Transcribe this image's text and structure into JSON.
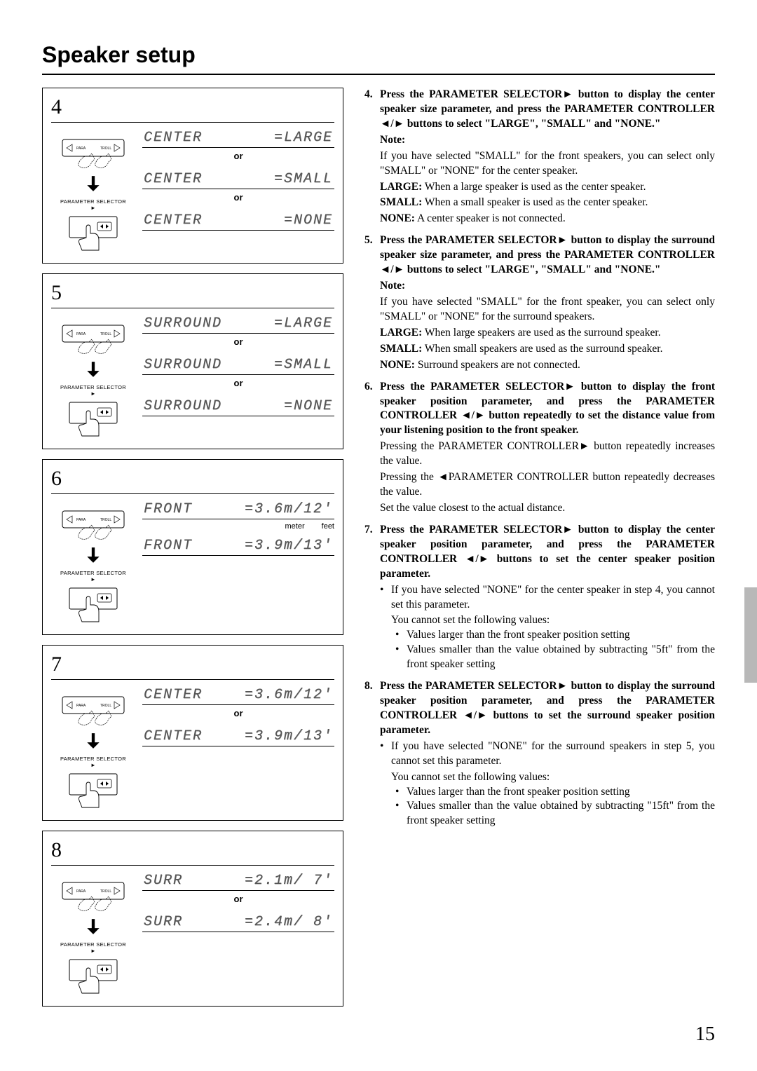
{
  "title": "Speaker setup",
  "page_number": "15",
  "remote_label": "PARAMETER SELECTOR",
  "arrow_icons": {
    "left": "◄",
    "right": "►"
  },
  "left_steps": [
    {
      "num": "4",
      "displays": [
        {
          "left": "CENTER",
          "right": "=LARGE",
          "or_after": true
        },
        {
          "left": "CENTER",
          "right": "=SMALL",
          "or_after": true
        },
        {
          "left": "CENTER",
          "right": "=NONE",
          "or_after": false
        }
      ]
    },
    {
      "num": "5",
      "displays": [
        {
          "left": "SURROUND",
          "right": "=LARGE",
          "or_after": true
        },
        {
          "left": "SURROUND",
          "right": "=SMALL",
          "or_after": true
        },
        {
          "left": "SURROUND",
          "right": "=NONE",
          "or_after": false
        }
      ]
    },
    {
      "num": "6",
      "unit_labels": {
        "meter": "meter",
        "feet": "feet"
      },
      "displays": [
        {
          "left": "FRONT",
          "right": "=3.6m/12'",
          "or_after": false,
          "units_after": true
        },
        {
          "left": "FRONT",
          "right": "=3.9m/13'",
          "or_after": false
        }
      ]
    },
    {
      "num": "7",
      "displays": [
        {
          "left": "CENTER",
          "right": "=3.6m/12'",
          "or_after": true
        },
        {
          "left": "CENTER",
          "right": "=3.9m/13'",
          "or_after": false
        }
      ]
    },
    {
      "num": "8",
      "displays": [
        {
          "left": "SURR",
          "right": "=2.1m/ 7'",
          "or_after": true
        },
        {
          "left": "SURR",
          "right": "=2.4m/ 8'",
          "or_after": false
        }
      ]
    }
  ],
  "right_steps": {
    "s4": {
      "head_a": "Press the PARAMETER SELECTOR",
      "head_b": " button to display the center speaker size parameter, and press the PARAME­TER CONTROLLER ",
      "head_c": " buttons to select \"LARGE\", \"SMALL\" and \"NONE.\"",
      "note": "Note:",
      "body1": "If you have selected \"SMALL\" for the front speakers, you can select only \"SMALL\" or \"NONE\" for the center speaker.",
      "large": "LARGE:",
      "large_t": " When a large speaker is used as the center speaker.",
      "small": "SMALL:",
      "small_t": " When a small speaker is used as the center speaker.",
      "none": "NONE:",
      "none_t": " A center speaker is not connected."
    },
    "s5": {
      "head_a": "Press the PARAMETER SELECTOR",
      "head_b": " button to display the surround speaker size parameter, and press the PARAMETER CONTROLLER ",
      "head_c": " buttons to select \"LARGE\", \"SMALL\" and \"NONE.\"",
      "note": "Note:",
      "body1": "If you have selected \"SMALL\" for the front speaker, you can select only \"SMALL\" or \"NONE\" for the surround speakers.",
      "large": "LARGE:",
      "large_t": " When large speakers are used as the surround speaker.",
      "small": "SMALL:",
      "small_t": " When small speakers are used as the surround speaker.",
      "none": "NONE:",
      "none_t": " Surround speakers are not connected."
    },
    "s6": {
      "head_a": "Press the PARAMETER SELECTOR",
      "head_b": " button to display the front speaker position parameter, and press the PARAMETER CONTROLLER ",
      "head_c": " button repeatedly to set the distance value from your listening position to the front speaker.",
      "l1a": "Pressing the PARAMETER CONTROLLER",
      "l1b": " button repeatedly increases the value.",
      "l2a": "Pressing the ",
      "l2b": "PARAMETER CONTROLLER button repeat­edly decreases the value.",
      "l3": "Set the value closest to the actual distance."
    },
    "s7": {
      "head_a": "Press the PARAMETER SELECTOR",
      "head_b": " button to display the center speaker position parameter, and press the PARAMETER CONTROLLER ",
      "head_c": " buttons to set the center speaker position parameter.",
      "b1": "If you have selected \"NONE\" for the center speaker in step 4, you cannot set this parameter.",
      "b2": "You cannot set the following values:",
      "b3": "Values larger than the front speaker position setting",
      "b4": "Values smaller than the value obtained by subtracting \"5ft\" from the front speaker setting"
    },
    "s8": {
      "head_a": "Press the PARAMETER SELECTOR",
      "head_b": " button to display the surround speaker position parameter, and press the PARAMETER CONTROLLER ",
      "head_c": " buttons to set the sur­round speaker position parameter.",
      "b1": "If you have selected \"NONE\" for the surround speakers in step 5, you cannot set this parameter.",
      "b2": "You cannot set the following values:",
      "b3": "Values larger than the front speaker position setting",
      "b4": "Values smaller than the value obtained by subtracting \"15ft\" from the front speaker setting"
    }
  }
}
